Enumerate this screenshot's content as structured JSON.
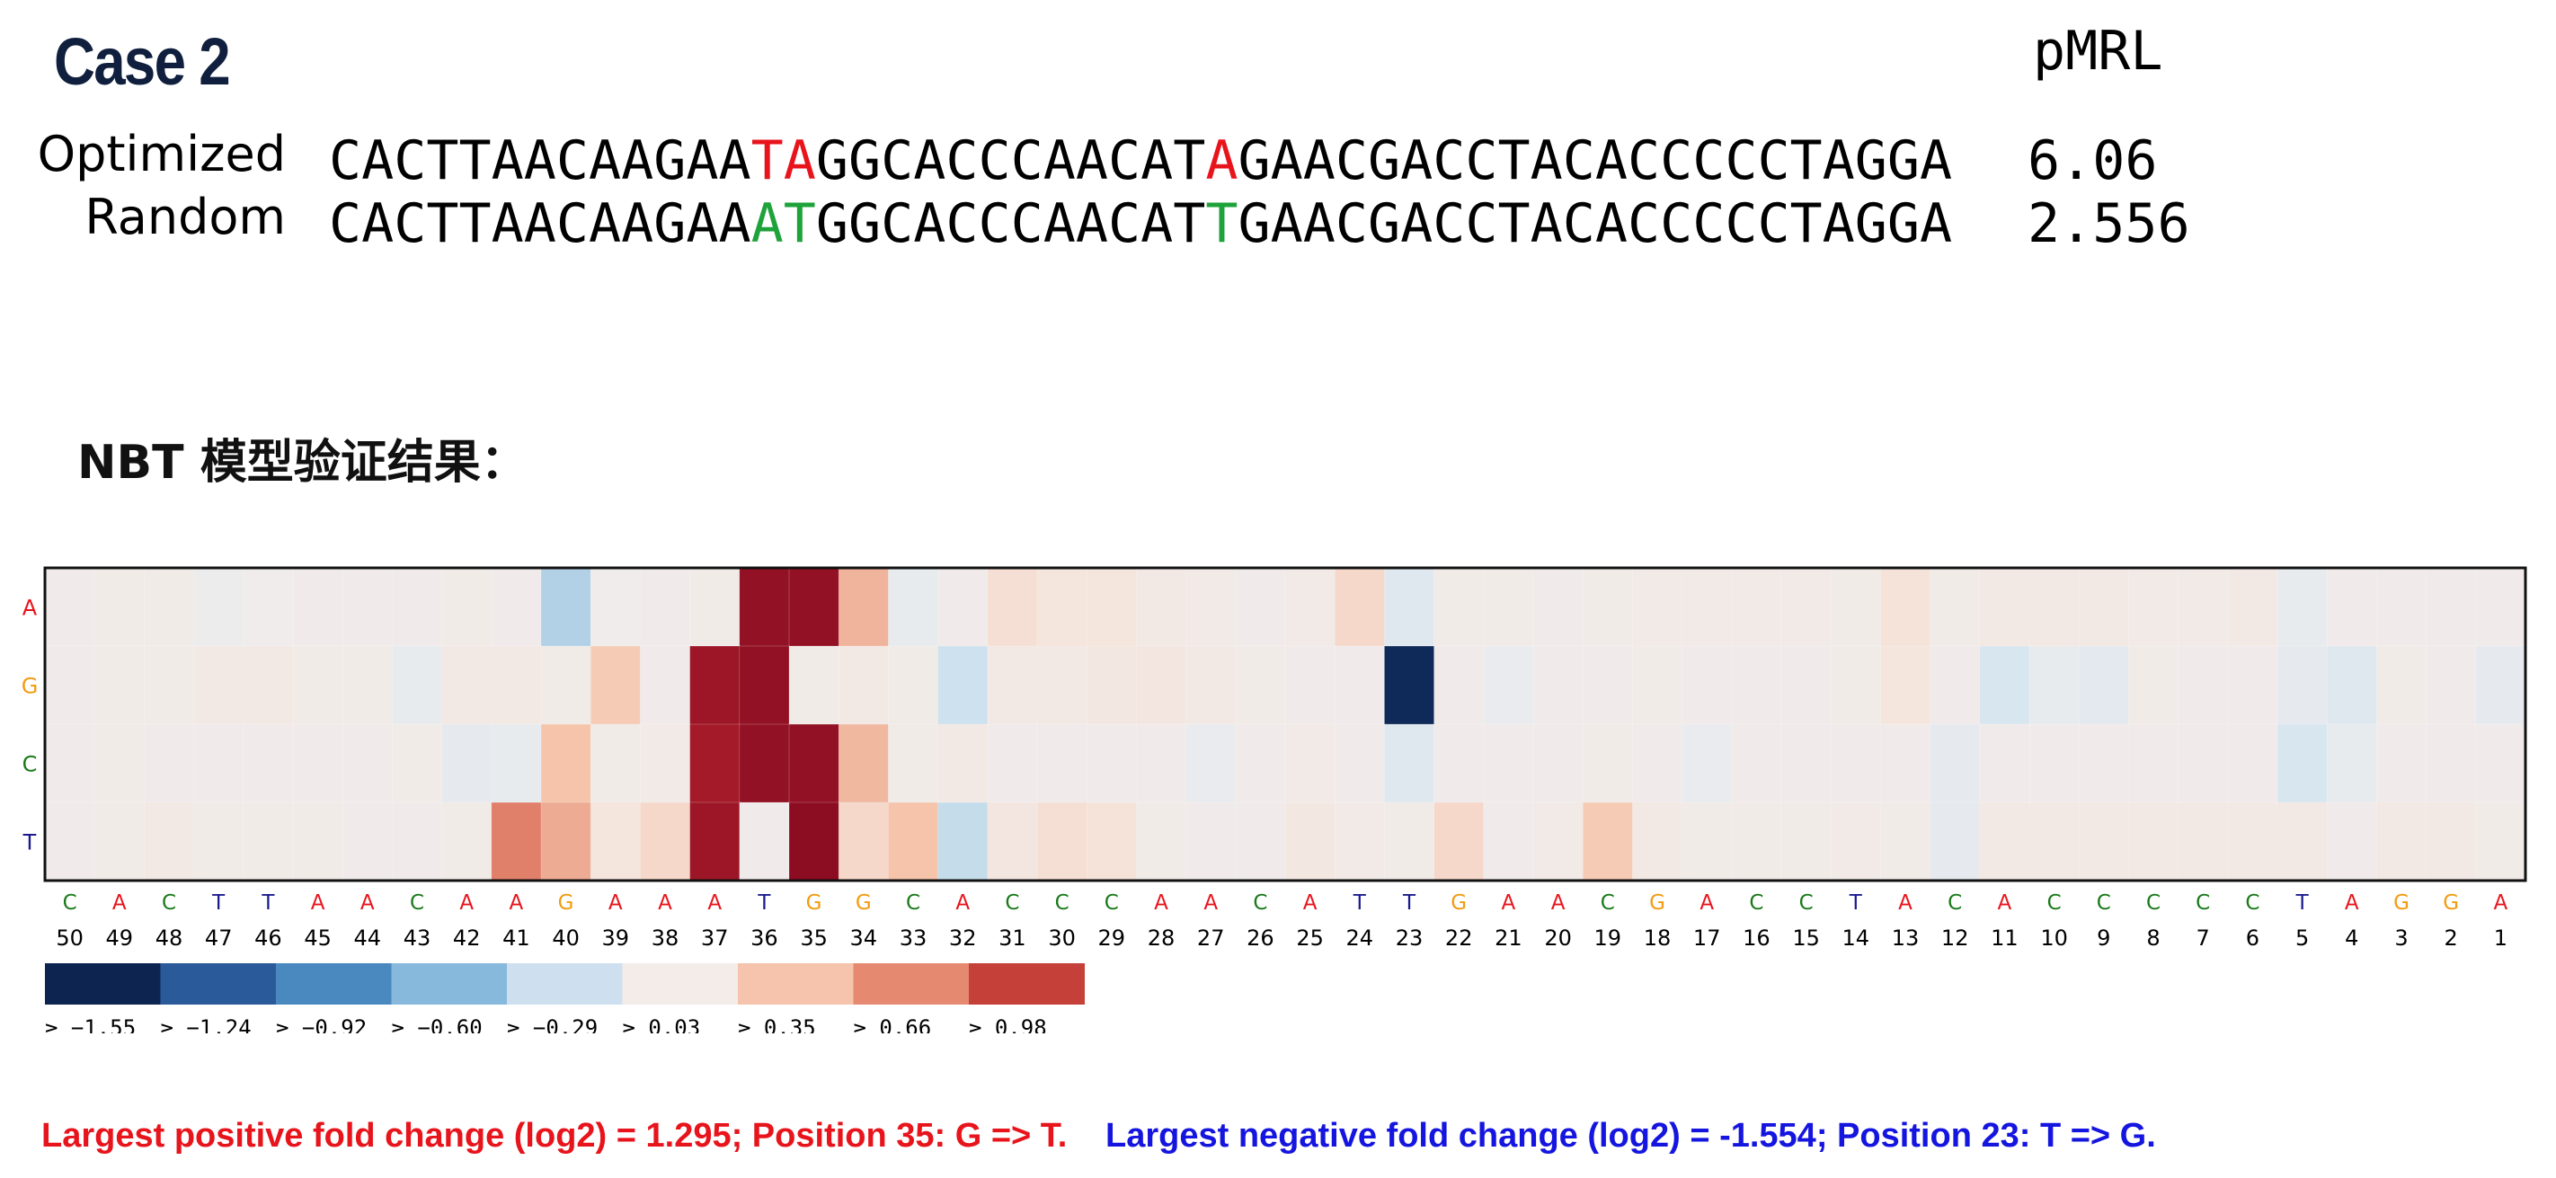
{
  "header": {
    "case_title": "Case 2",
    "pmrl_label": "pMRL"
  },
  "sequences": [
    {
      "label": "Optimized",
      "segments": [
        {
          "text": "CACTTAACAAGAA",
          "color": "#000000"
        },
        {
          "text": "TA",
          "color": "#e8141c"
        },
        {
          "text": "GGCACCCAACAT",
          "color": "#000000"
        },
        {
          "text": "A",
          "color": "#e8141c"
        },
        {
          "text": "GAACGACCTACACCCCCTAGGA",
          "color": "#000000"
        }
      ],
      "pmrl": "6.06"
    },
    {
      "label": "Random",
      "segments": [
        {
          "text": "CACTTAACAAGAA",
          "color": "#000000"
        },
        {
          "text": "AT",
          "color": "#1ea23a"
        },
        {
          "text": "GGCACCCAACAT",
          "color": "#000000"
        },
        {
          "text": "T",
          "color": "#1ea23a"
        },
        {
          "text": "GAACGACCTACACCCCCTAGGA",
          "color": "#000000"
        }
      ],
      "pmrl": "2.556"
    }
  ],
  "section_heading": "NBT 模型验证结果：",
  "chart_data": {
    "type": "heatmap",
    "row_labels": [
      "A",
      "G",
      "C",
      "T"
    ],
    "row_label_colors": {
      "A": "#e8141c",
      "G": "#f39c12",
      "C": "#1a7a1a",
      "T": "#1a1a8c"
    },
    "column_positions": [
      50,
      49,
      48,
      47,
      46,
      45,
      44,
      43,
      42,
      41,
      40,
      39,
      38,
      37,
      36,
      35,
      34,
      33,
      32,
      31,
      30,
      29,
      28,
      27,
      26,
      25,
      24,
      23,
      22,
      21,
      20,
      19,
      18,
      17,
      16,
      15,
      14,
      13,
      12,
      11,
      10,
      9,
      8,
      7,
      6,
      5,
      4,
      3,
      2,
      1
    ],
    "column_bases": [
      "C",
      "A",
      "C",
      "T",
      "T",
      "A",
      "A",
      "C",
      "A",
      "A",
      "G",
      "A",
      "A",
      "A",
      "T",
      "G",
      "G",
      "C",
      "A",
      "C",
      "C",
      "C",
      "A",
      "A",
      "C",
      "A",
      "T",
      "T",
      "G",
      "A",
      "A",
      "C",
      "G",
      "A",
      "C",
      "C",
      "T",
      "A",
      "C",
      "A",
      "C",
      "C",
      "C",
      "C",
      "C",
      "T",
      "A",
      "G",
      "G",
      "A"
    ],
    "values": {
      "A": [
        0.02,
        0.03,
        0.03,
        -0.02,
        0.01,
        0.02,
        0.02,
        0.02,
        0.03,
        0.02,
        -0.35,
        0.01,
        0.02,
        0.03,
        1.25,
        1.25,
        0.45,
        -0.05,
        0.02,
        0.15,
        0.1,
        0.1,
        0.05,
        0.04,
        0.02,
        0.04,
        0.2,
        -0.1,
        0.03,
        0.03,
        0.02,
        0.03,
        0.04,
        0.04,
        0.04,
        0.04,
        0.03,
        0.12,
        0.03,
        0.06,
        0.06,
        0.06,
        0.04,
        0.04,
        0.05,
        -0.05,
        0.02,
        0.02,
        0.02,
        0.02
      ],
      "G": [
        0.02,
        0.03,
        0.03,
        0.05,
        0.06,
        0.03,
        0.03,
        -0.05,
        0.06,
        0.06,
        0.03,
        0.3,
        0.02,
        1.2,
        1.25,
        0.03,
        0.05,
        0.03,
        -0.2,
        0.05,
        0.06,
        0.07,
        0.08,
        0.05,
        0.03,
        0.02,
        0.02,
        -1.554,
        0.02,
        -0.04,
        0.02,
        0.02,
        0.03,
        0.02,
        0.02,
        0.02,
        0.03,
        0.1,
        0.02,
        -0.15,
        -0.05,
        -0.08,
        0.03,
        0.02,
        0.02,
        -0.06,
        -0.1,
        0.03,
        0.02,
        -0.06
      ],
      "C": [
        0.02,
        0.03,
        0.02,
        0.02,
        0.02,
        0.02,
        0.02,
        0.03,
        -0.06,
        -0.05,
        0.35,
        0.03,
        0.04,
        1.15,
        1.25,
        1.25,
        0.42,
        0.03,
        0.05,
        0.02,
        0.02,
        0.02,
        0.02,
        -0.04,
        0.02,
        0.04,
        0.02,
        -0.1,
        0.02,
        0.02,
        0.02,
        0.03,
        0.02,
        -0.04,
        0.02,
        0.02,
        0.02,
        0.02,
        -0.06,
        0.02,
        0.02,
        0.02,
        0.02,
        0.02,
        0.02,
        -0.15,
        -0.05,
        0.02,
        0.02,
        0.02
      ],
      "T": [
        0.02,
        0.03,
        0.06,
        0.03,
        0.03,
        0.03,
        0.02,
        0.02,
        0.03,
        0.75,
        0.5,
        0.1,
        0.2,
        1.2,
        0.02,
        1.295,
        0.2,
        0.35,
        -0.25,
        0.08,
        0.15,
        0.12,
        0.03,
        0.02,
        0.02,
        0.07,
        0.04,
        0.03,
        0.2,
        0.02,
        0.04,
        0.3,
        0.06,
        0.03,
        0.03,
        0.03,
        0.04,
        0.03,
        -0.06,
        0.06,
        0.06,
        0.06,
        0.06,
        0.06,
        0.06,
        0.06,
        0.02,
        0.06,
        0.06,
        0.03
      ]
    },
    "legend": {
      "labels": [
        "≥ −1.55",
        "≥ −1.24",
        "≥ −0.92",
        "≥ −0.60",
        "≥ −0.29",
        "≥ 0.03",
        "≥ 0.35",
        "≥ 0.66",
        "≥ 0.98"
      ],
      "thresholds": [
        -1.55,
        -1.24,
        -0.92,
        -0.6,
        -0.29,
        0.03,
        0.35,
        0.66,
        0.98
      ],
      "colors": [
        "#0d2451",
        "#2b5a9b",
        "#4a88c0",
        "#86b9dc",
        "#cee0ef",
        "#f3ece9",
        "#f6c4ac",
        "#e58a70",
        "#c6403a"
      ]
    },
    "colormap_stops": [
      {
        "v": -1.6,
        "c": "#0b234f"
      },
      {
        "v": -1.2,
        "c": "#2a5c9c"
      },
      {
        "v": -0.8,
        "c": "#5a97c9"
      },
      {
        "v": -0.4,
        "c": "#a8cce4"
      },
      {
        "v": -0.15,
        "c": "#d8e6f0"
      },
      {
        "v": 0.0,
        "c": "#efeded"
      },
      {
        "v": 0.12,
        "c": "#f5e3da"
      },
      {
        "v": 0.35,
        "c": "#f5c4ab"
      },
      {
        "v": 0.75,
        "c": "#e0806a"
      },
      {
        "v": 1.05,
        "c": "#b5242e"
      },
      {
        "v": 1.3,
        "c": "#8b0c22"
      }
    ]
  },
  "captions": {
    "positive": "Largest positive fold change (log2) = 1.295; Position 35: G => T.",
    "negative": "Largest negative fold change (log2) = -1.554; Position 23: T => G.",
    "positive_color": "#e8141c",
    "negative_color": "#1515e0"
  }
}
